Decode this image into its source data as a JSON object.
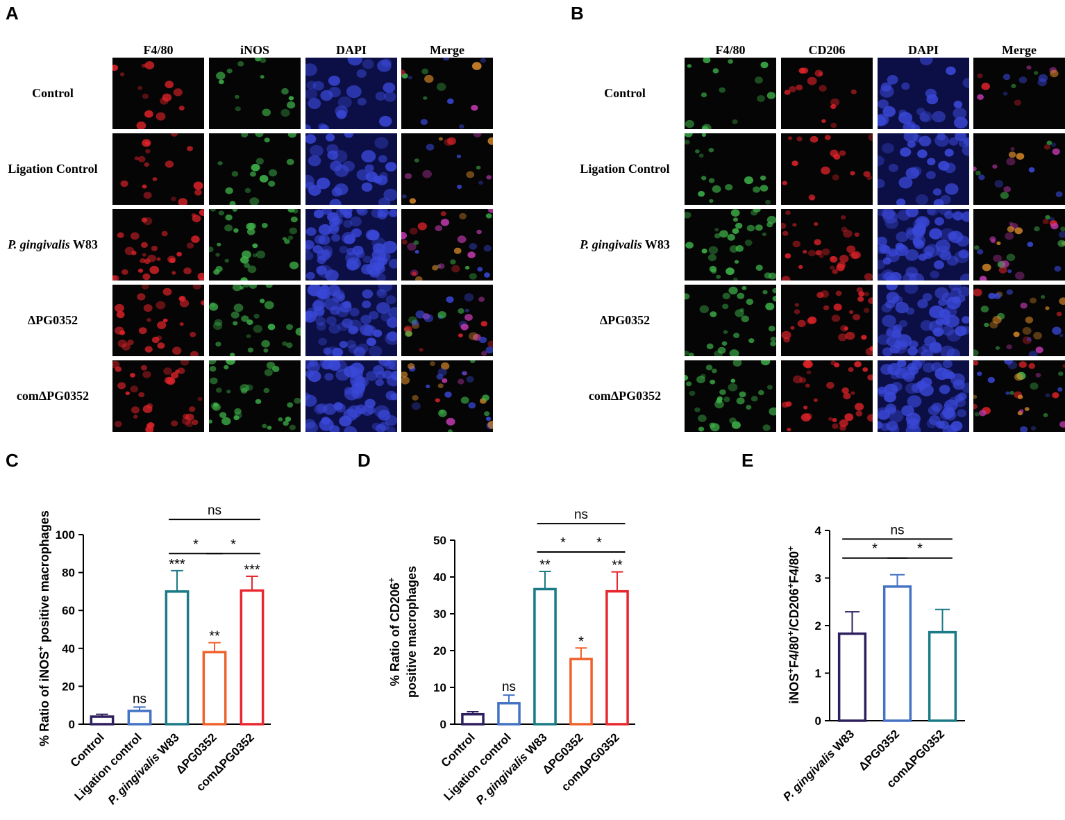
{
  "panels": {
    "A": {
      "label": "A",
      "columns": [
        "F4/80",
        "iNOS",
        "DAPI",
        "Merge"
      ],
      "rows": [
        {
          "pre": "Control",
          "it": "",
          "post": ""
        },
        {
          "pre": "Ligation Control",
          "it": "",
          "post": ""
        },
        {
          "pre": "",
          "it": "P. gingivalis",
          "post": " W83"
        },
        {
          "pre": "ΔPG0352",
          "it": "",
          "post": ""
        },
        {
          "pre": "comΔPG0352",
          "it": "",
          "post": ""
        }
      ],
      "channel_colors": [
        "#e0232a",
        "#3fb44a",
        "#3a48d8",
        "merge"
      ]
    },
    "B": {
      "label": "B",
      "columns": [
        "F4/80",
        "CD206",
        "DAPI",
        "Merge"
      ],
      "rows": [
        {
          "pre": "Control",
          "it": "",
          "post": ""
        },
        {
          "pre": "Ligation Control",
          "it": "",
          "post": ""
        },
        {
          "pre": "",
          "it": "P. gingivalis",
          "post": " W83"
        },
        {
          "pre": "ΔPG0352",
          "it": "",
          "post": ""
        },
        {
          "pre": "comΔPG0352",
          "it": "",
          "post": ""
        }
      ],
      "channel_colors": [
        "#3fb44a",
        "#e0232a",
        "#3a48d8",
        "merge"
      ]
    },
    "C": {
      "label": "C"
    },
    "D": {
      "label": "D"
    },
    "E": {
      "label": "E"
    }
  },
  "chart_data": [
    {
      "panel": "C",
      "type": "bar",
      "ylabel_parts": [
        {
          "t": "% Ratio of iNOS"
        },
        {
          "t": "+",
          "sup": true
        },
        {
          "t": " positive macrophages"
        }
      ],
      "ylim": [
        0,
        100
      ],
      "yticks": [
        0,
        20,
        40,
        60,
        80,
        100
      ],
      "categories": [
        [
          {
            "t": "Control"
          }
        ],
        [
          {
            "t": "Ligation control"
          }
        ],
        [
          {
            "t": "P. gingivalis",
            "it": true
          },
          {
            "t": " W83"
          }
        ],
        [
          {
            "t": "ΔPG0352"
          }
        ],
        [
          {
            "t": "comΔPG0352"
          }
        ]
      ],
      "values": [
        4,
        7,
        70,
        38,
        70.5
      ],
      "errors": [
        1.2,
        2,
        11,
        5,
        7.5
      ],
      "colors": [
        "#2e1f5e",
        "#4472c4",
        "#1a7a85",
        "#f0622d",
        "#e8262e"
      ],
      "bar_labels": [
        "",
        "ns",
        "***",
        "**",
        "***"
      ],
      "comparisons": [
        {
          "from": 2,
          "to": 3,
          "label": "*",
          "y": 90
        },
        {
          "from": 3,
          "to": 4,
          "label": "*",
          "y": 90
        },
        {
          "from": 2,
          "to": 4,
          "label": "ns",
          "y": 108
        }
      ]
    },
    {
      "panel": "D",
      "type": "bar",
      "ylabel_parts": [
        {
          "t": "% Ratio of CD206"
        },
        {
          "t": "+",
          "sup": true
        }
      ],
      "ylabel_line2": "positive macrophages",
      "ylim": [
        0,
        50
      ],
      "yticks": [
        0,
        10,
        20,
        30,
        40,
        50
      ],
      "categories": [
        [
          {
            "t": "Control"
          }
        ],
        [
          {
            "t": "Ligation control"
          }
        ],
        [
          {
            "t": "P. gingivalis",
            "it": true
          },
          {
            "t": " W83"
          }
        ],
        [
          {
            "t": "ΔPG0352"
          }
        ],
        [
          {
            "t": "comΔPG0352"
          }
        ]
      ],
      "values": [
        2.7,
        5.7,
        36.7,
        17.7,
        36.1
      ],
      "errors": [
        0.7,
        2.2,
        4.8,
        3,
        5.3
      ],
      "colors": [
        "#2e1f5e",
        "#4472c4",
        "#1a7a85",
        "#f0622d",
        "#e8262e"
      ],
      "bar_labels": [
        "",
        "ns",
        "**",
        "*",
        "**"
      ],
      "comparisons": [
        {
          "from": 2,
          "to": 3,
          "label": "*",
          "y": 46.8
        },
        {
          "from": 3,
          "to": 4,
          "label": "*",
          "y": 46.8
        },
        {
          "from": 2,
          "to": 4,
          "label": "ns",
          "y": 54.5
        }
      ]
    },
    {
      "panel": "E",
      "type": "bar",
      "ylabel_parts": [
        {
          "t": "iNOS"
        },
        {
          "t": "+",
          "sup": true
        },
        {
          "t": "F4/80"
        },
        {
          "t": "+",
          "sup": true
        },
        {
          "t": "/CD206"
        },
        {
          "t": "+",
          "sup": true
        },
        {
          "t": "F4/80"
        },
        {
          "t": "+",
          "sup": true
        }
      ],
      "ylim": [
        0,
        4
      ],
      "yticks": [
        0,
        1,
        2,
        3,
        4
      ],
      "categories": [
        [
          {
            "t": "P. gingivalis",
            "it": true
          },
          {
            "t": " W83"
          }
        ],
        [
          {
            "t": "ΔPG0352"
          }
        ],
        [
          {
            "t": "comΔPG0352"
          }
        ]
      ],
      "values": [
        1.83,
        2.82,
        1.86
      ],
      "errors": [
        0.46,
        0.25,
        0.48
      ],
      "colors": [
        "#2e1f5e",
        "#4472c4",
        "#1a7a85"
      ],
      "bar_labels": [
        "",
        "",
        ""
      ],
      "comparisons": [
        {
          "from": 0,
          "to": 1,
          "label": "*",
          "y": 3.42
        },
        {
          "from": 1,
          "to": 2,
          "label": "*",
          "y": 3.42
        },
        {
          "from": 0,
          "to": 2,
          "label": "ns",
          "y": 3.82
        }
      ]
    }
  ]
}
